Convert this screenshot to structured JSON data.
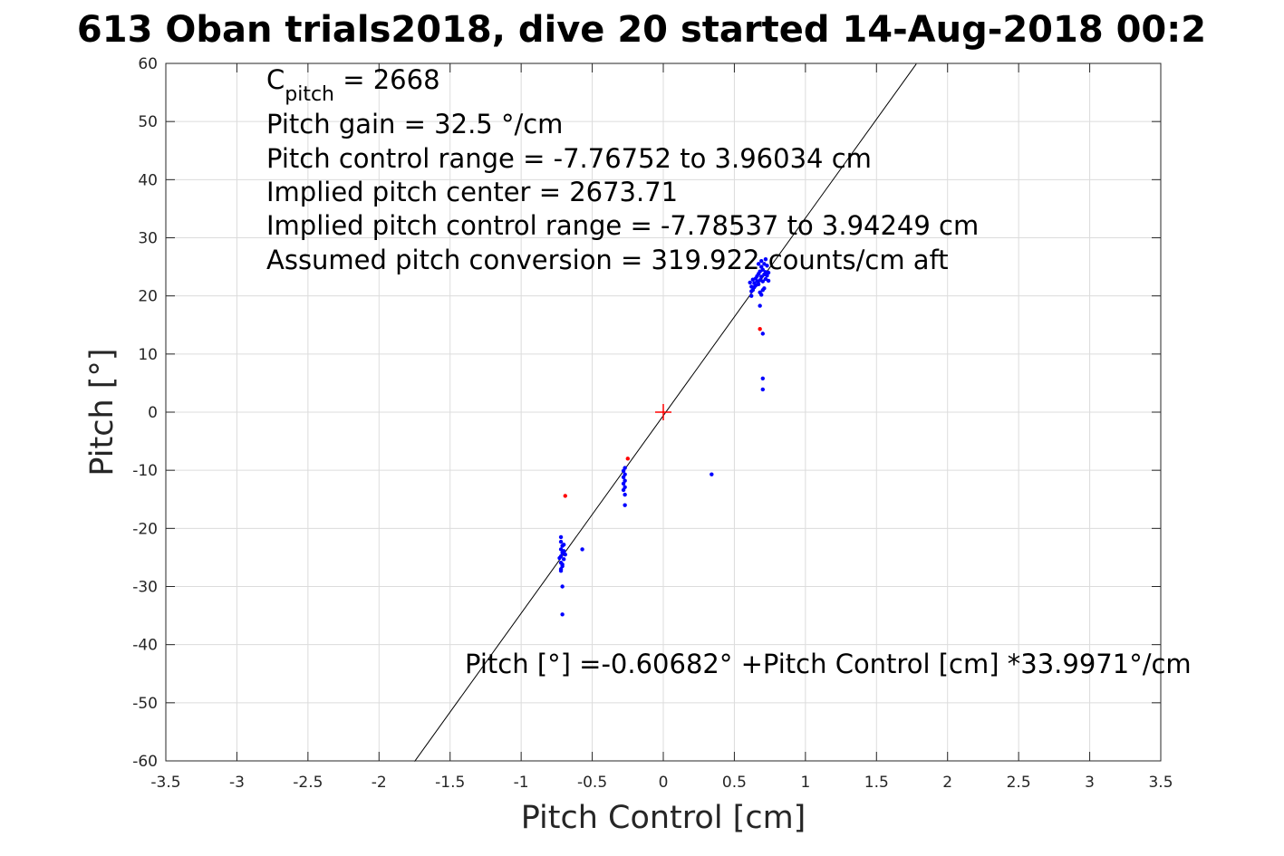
{
  "chart_data": {
    "type": "scatter",
    "title": "613 Oban trials2018, dive 20 started 14-Aug-2018 00:2",
    "xlabel": "Pitch Control [cm]",
    "ylabel": "Pitch [°]",
    "xlim": [
      -3.5,
      3.5
    ],
    "ylim": [
      -60,
      60
    ],
    "x_ticks": [
      -3.5,
      -3,
      -2.5,
      -2,
      -1.5,
      -1,
      -0.5,
      0,
      0.5,
      1,
      1.5,
      2,
      2.5,
      3,
      3.5
    ],
    "x_tick_labels": [
      "-3.5",
      "-3",
      "-2.5",
      "-2",
      "-1.5",
      "-1",
      "-0.5",
      "0",
      "0.5",
      "1",
      "1.5",
      "2",
      "2.5",
      "3",
      "3.5"
    ],
    "y_ticks": [
      -60,
      -50,
      -40,
      -30,
      -20,
      -10,
      0,
      10,
      20,
      30,
      40,
      50,
      60
    ],
    "y_tick_labels": [
      "-60",
      "-50",
      "-40",
      "-30",
      "-20",
      "-10",
      "0",
      "10",
      "20",
      "30",
      "40",
      "50",
      "60"
    ],
    "grid": true,
    "colors": {
      "good": "#0000ff",
      "flagged": "#ff0000",
      "fit": "#000000",
      "center": "#ff0000",
      "grid": "#dcdcdc"
    },
    "series": [
      {
        "color": "#0000ff",
        "points": [
          [
            -0.72,
            -21.5
          ],
          [
            -0.72,
            -22.3
          ],
          [
            -0.71,
            -23.0
          ],
          [
            -0.72,
            -23.6
          ],
          [
            -0.71,
            -24.2
          ],
          [
            -0.72,
            -24.8
          ],
          [
            -0.7,
            -25.3
          ],
          [
            -0.72,
            -25.9
          ],
          [
            -0.71,
            -26.5
          ],
          [
            -0.72,
            -27.0
          ],
          [
            -0.7,
            -23.9
          ],
          [
            -0.69,
            -24.5
          ],
          [
            -0.7,
            -22.8
          ],
          [
            -0.71,
            -26.2
          ],
          [
            -0.73,
            -25.1
          ],
          [
            -0.72,
            -27.3
          ],
          [
            -0.7,
            -24.0
          ],
          [
            -0.71,
            -30.0
          ],
          [
            -0.71,
            -34.8
          ],
          [
            -0.57,
            -23.6
          ],
          [
            -0.27,
            -9.6
          ],
          [
            -0.28,
            -10.1
          ],
          [
            -0.27,
            -10.7
          ],
          [
            -0.28,
            -11.2
          ],
          [
            -0.27,
            -11.8
          ],
          [
            -0.28,
            -12.3
          ],
          [
            -0.27,
            -12.9
          ],
          [
            -0.28,
            -13.4
          ],
          [
            -0.27,
            -14.2
          ],
          [
            -0.27,
            -16.0
          ],
          [
            0.34,
            -10.7
          ],
          [
            0.62,
            20.0
          ],
          [
            0.62,
            20.8
          ],
          [
            0.62,
            21.6
          ],
          [
            0.61,
            22.3
          ],
          [
            0.63,
            21.0
          ],
          [
            0.63,
            22.8
          ],
          [
            0.64,
            21.5
          ],
          [
            0.64,
            22.2
          ],
          [
            0.65,
            23.0
          ],
          [
            0.65,
            21.8
          ],
          [
            0.66,
            22.5
          ],
          [
            0.66,
            23.4
          ],
          [
            0.67,
            22.0
          ],
          [
            0.67,
            23.8
          ],
          [
            0.68,
            22.7
          ],
          [
            0.68,
            24.2
          ],
          [
            0.69,
            23.3
          ],
          [
            0.69,
            25.0
          ],
          [
            0.69,
            26.0
          ],
          [
            0.7,
            24.5
          ],
          [
            0.7,
            22.5
          ],
          [
            0.71,
            23.7
          ],
          [
            0.71,
            25.5
          ],
          [
            0.72,
            24.1
          ],
          [
            0.72,
            22.9
          ],
          [
            0.73,
            23.5
          ],
          [
            0.73,
            25.2
          ],
          [
            0.74,
            24.0
          ],
          [
            0.74,
            22.6
          ],
          [
            0.7,
            21.0
          ],
          [
            0.68,
            20.6
          ],
          [
            0.71,
            21.3
          ],
          [
            0.69,
            20.2
          ],
          [
            0.67,
            25.5
          ],
          [
            0.72,
            26.3
          ],
          [
            0.68,
            18.3
          ],
          [
            0.7,
            13.5
          ],
          [
            0.7,
            5.8
          ],
          [
            0.7,
            3.9
          ]
        ]
      },
      {
        "color": "#ff0000",
        "points": [
          [
            -0.69,
            -14.4
          ],
          [
            -0.25,
            -8.0
          ],
          [
            0.68,
            14.3
          ]
        ]
      }
    ],
    "fit_line": {
      "intercept": -0.60682,
      "slope": 33.9971,
      "x_range": [
        -1.75,
        1.78
      ]
    },
    "center_marker": [
      0,
      0
    ],
    "annotations": {
      "c_pitch_prefix": "C",
      "c_pitch_sub": "pitch",
      "c_pitch_value": " = 2668",
      "pitch_gain": "Pitch gain = 32.5 °/cm",
      "control_range": "Pitch control range = -7.76752 to 3.96034 cm",
      "implied_center": "Implied pitch center = 2673.71",
      "implied_range": "Implied pitch control range = -7.78537 to 3.94249 cm",
      "conversion": "Assumed pitch conversion = 319.922 counts/cm aft",
      "fit_equation": "Pitch [°] =-0.60682° +Pitch Control [cm] *33.9971°/cm"
    }
  }
}
